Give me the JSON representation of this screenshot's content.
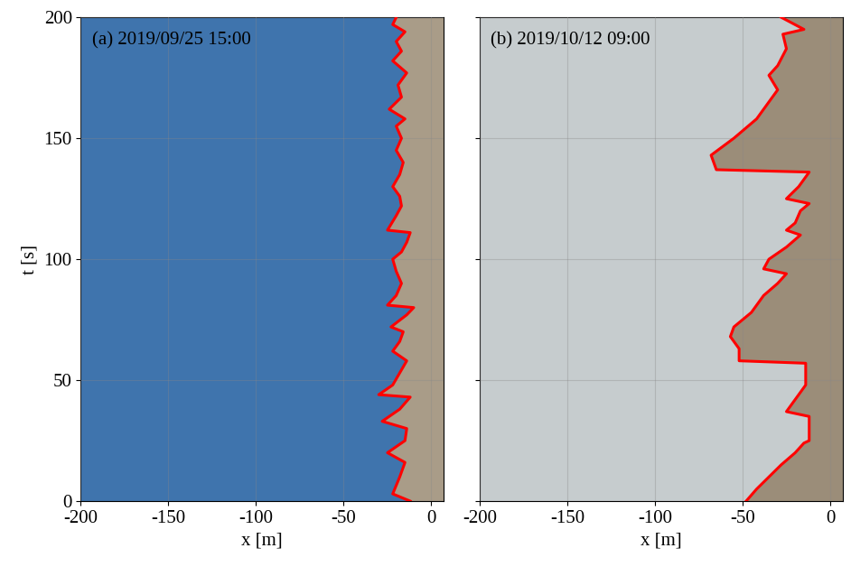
{
  "chart_data": [
    {
      "type": "line",
      "title": "(a) 2019/09/25 15:00",
      "x_label": "x [m]",
      "y_label": "t [s]",
      "xlim": [
        -200,
        7
      ],
      "ylim": [
        0,
        200
      ],
      "xticks": [
        -200,
        -150,
        -100,
        -50,
        0
      ],
      "yticks": [
        0,
        50,
        100,
        150,
        200
      ],
      "grid": true,
      "series": [
        {
          "color": "#ff0000",
          "x": [
            -12,
            -22,
            -18,
            -15,
            -25,
            -15,
            -14,
            -28,
            -18,
            -12,
            -30,
            -22,
            -18,
            -14,
            -22,
            -18,
            -16,
            -23,
            -14,
            -10,
            -25,
            -20,
            -17,
            -20,
            -22,
            -17,
            -14,
            -12,
            -25,
            -20,
            -17,
            -18,
            -22,
            -18,
            -16,
            -20,
            -17,
            -20,
            -15,
            -24,
            -17,
            -19,
            -14,
            -22,
            -17,
            -20,
            -15,
            -22,
            -20
          ],
          "y": [
            0,
            3,
            10,
            16,
            20,
            25,
            30,
            33,
            38,
            43,
            44,
            48,
            53,
            58,
            62,
            66,
            70,
            72,
            77,
            80,
            81,
            85,
            90,
            95,
            100,
            103,
            107,
            111,
            112,
            118,
            122,
            126,
            130,
            135,
            140,
            145,
            150,
            155,
            158,
            162,
            167,
            172,
            177,
            182,
            186,
            190,
            194,
            197,
            200
          ]
        }
      ]
    },
    {
      "type": "line",
      "title": "(b) 2019/10/12 09:00",
      "x_label": "x [m]",
      "xlim": [
        -200,
        7
      ],
      "ylim": [
        0,
        200
      ],
      "xticks": [
        -200,
        -150,
        -100,
        -50,
        0
      ],
      "yticks": [
        0,
        50,
        100,
        150,
        200
      ],
      "grid": true,
      "tick_labels": "x",
      "series": [
        {
          "color": "#ff0000",
          "x": [
            -48,
            -42,
            -35,
            -28,
            -20,
            -15,
            -12,
            -12,
            -25,
            -20,
            -14,
            -14,
            -52,
            -52,
            -57,
            -55,
            -45,
            -38,
            -30,
            -25,
            -38,
            -35,
            -25,
            -17,
            -25,
            -20,
            -17,
            -12,
            -25,
            -18,
            -12,
            -65,
            -68,
            -55,
            -42,
            -35,
            -30,
            -35,
            -30,
            -25,
            -27,
            -15,
            -28
          ],
          "y": [
            0,
            5,
            10,
            15,
            20,
            24,
            25,
            35,
            37,
            42,
            48,
            57,
            58,
            63,
            68,
            72,
            78,
            85,
            90,
            94,
            96,
            100,
            105,
            110,
            112,
            115,
            120,
            123,
            125,
            130,
            136,
            137,
            143,
            150,
            158,
            165,
            170,
            176,
            180,
            187,
            193,
            195,
            200
          ]
        }
      ]
    }
  ]
}
